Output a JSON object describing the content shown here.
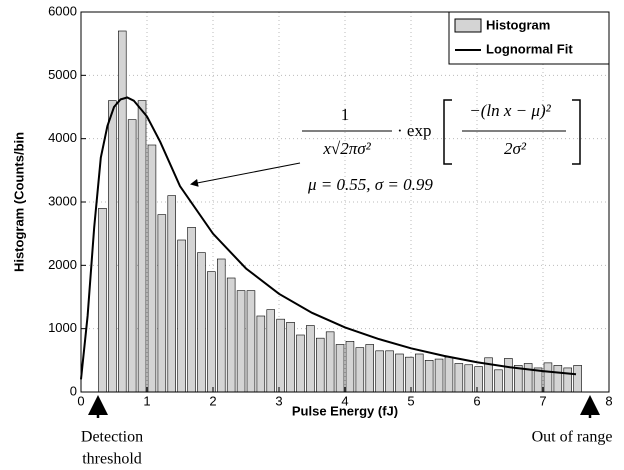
{
  "chart_data": {
    "type": "histogram",
    "xlabel": "Pulse Energy (fJ)",
    "ylabel": "Histogram (Counts/bin",
    "xlim": [
      0,
      8
    ],
    "xticks": [
      0,
      1,
      2,
      3,
      4,
      5,
      6,
      7,
      8
    ],
    "ylim": [
      0,
      6000
    ],
    "yticks": [
      0,
      1000,
      2000,
      3000,
      4000,
      5000,
      6000
    ],
    "grid": true,
    "legend": "upper right",
    "series": [
      {
        "name": "Histogram",
        "type": "histogram",
        "color": "#d4d4d4",
        "bins": [
          0.25,
          0.4,
          0.55,
          0.7,
          0.85,
          1,
          1.15,
          1.3,
          1.45,
          1.6,
          1.75,
          1.9,
          2.05,
          2.2,
          2.35,
          2.5,
          2.65,
          2.8,
          2.95,
          3.1,
          3.25,
          3.4,
          3.55,
          3.7,
          3.85,
          4,
          4.15,
          4.3,
          4.45,
          4.6,
          4.75,
          4.9,
          5.05,
          5.2,
          5.35,
          5.5,
          5.65,
          5.8,
          5.95,
          6.1,
          6.25,
          6.4,
          6.55,
          6.7,
          6.85,
          7,
          7.15,
          7.3,
          7.45,
          7.6
        ],
        "values": [
          2900,
          4600,
          5700,
          4300,
          4600,
          3900,
          2800,
          3100,
          2400,
          2600,
          2200,
          1900,
          2100,
          1800,
          1600,
          1600,
          1200,
          1300,
          1150,
          1100,
          900,
          1050,
          850,
          950,
          750,
          800,
          700,
          750,
          650,
          650,
          600,
          550,
          600,
          500,
          520,
          550,
          450,
          430,
          400,
          540,
          350,
          530,
          420,
          450,
          380,
          460,
          420,
          380,
          420
        ]
      },
      {
        "name": "Lognormal Fit",
        "type": "line",
        "color": "#000000",
        "x": [
          0,
          0.1,
          0.2,
          0.3,
          0.4,
          0.5,
          0.6,
          0.7,
          0.8,
          1,
          1.2,
          1.5,
          2,
          2.5,
          3,
          3.5,
          4,
          4.5,
          5,
          5.5,
          6,
          6.5,
          7,
          7.5
        ],
        "values": [
          200,
          1200,
          2600,
          3700,
          4200,
          4500,
          4620,
          4650,
          4600,
          4350,
          3950,
          3250,
          2500,
          1950,
          1550,
          1250,
          1020,
          840,
          690,
          570,
          470,
          390,
          330,
          280
        ]
      }
    ],
    "annotations": [
      "1",
      "x√2πσ²",
      "· exp",
      "−(ln x − μ)²",
      "2σ²",
      "μ = 0.55,  σ = 0.99",
      "Detection",
      "threshold",
      "Out of range"
    ]
  }
}
